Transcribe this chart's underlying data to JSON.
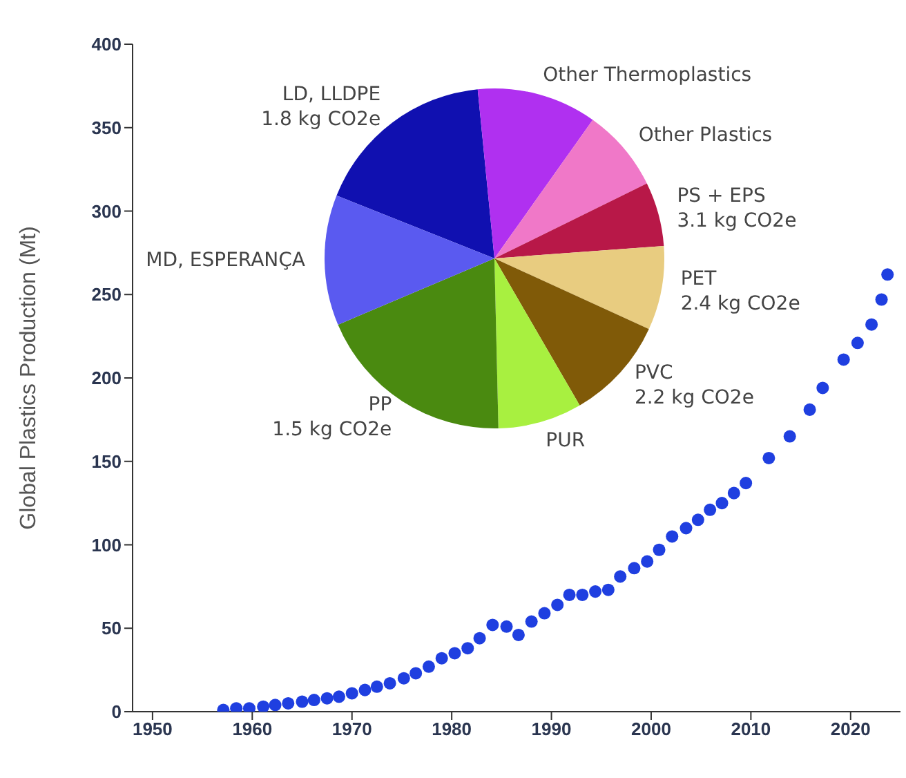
{
  "chart_data": [
    {
      "type": "scatter",
      "ylabel": "Global Plastics Production (Mt)",
      "xlim": [
        1948,
        2025
      ],
      "xticks": [
        1950,
        1960,
        1970,
        1980,
        1990,
        2000,
        2010,
        2020
      ],
      "ylim": [
        0,
        400
      ],
      "yticks": [
        0,
        50,
        100,
        150,
        200,
        250,
        300,
        350,
        400
      ],
      "marker": "circle",
      "series": [
        {
          "color": "#1f3fe0",
          "x": [
            1957.1,
            1958.4,
            1959.7,
            1961.1,
            1962.3,
            1963.6,
            1965,
            1966.2,
            1967.5,
            1968.7,
            1970,
            1971.3,
            1972.5,
            1973.8,
            1975.2,
            1976.4,
            1977.7,
            1979,
            1980.3,
            1981.6,
            1982.8,
            1984.1,
            1985.5,
            1986.7,
            1988,
            1989.3,
            1990.6,
            1991.8,
            1993.1,
            1994.4,
            1995.7,
            1996.9,
            1998.3,
            1999.6,
            2000.8,
            2002.1,
            2003.5,
            2004.7,
            2005.9,
            2007.1,
            2008.3,
            2009.5,
            2011.8,
            2013.9,
            2015.9,
            2017.2,
            2019.3,
            2020.7,
            2022.1,
            2023.1,
            2023.7
          ],
          "values": [
            1,
            2,
            2,
            3,
            4,
            5,
            6,
            7,
            8,
            9,
            11,
            13,
            15,
            17,
            20,
            23,
            27,
            32,
            35,
            38,
            44,
            52,
            51,
            46,
            54,
            59,
            64,
            70,
            70,
            72,
            73,
            81,
            86,
            90,
            97,
            105,
            110,
            115,
            121,
            125,
            131,
            137,
            152,
            165,
            181,
            194,
            211,
            221,
            232,
            247,
            262
          ]
        }
      ]
    },
    {
      "type": "pie",
      "categories": [
        "LD, LLDPE\n1.8 kg CO2e",
        "Other Thermoplastics",
        "Other Plastics",
        "PS + EPS\n3.1 kg CO2e",
        "PET\n2.4 kg CO2e",
        "PVC\n2.2 kg CO2e",
        "PUR",
        "PP\n1.5 kg CO2e",
        "MD, ESPERANÇA"
      ],
      "values": [
        17.4,
        11.4,
        7.9,
        6.1,
        8.0,
        9.8,
        8.0,
        19.0,
        12.4
      ],
      "colors": [
        "#1010b0",
        "#b030f0",
        "#f078c8",
        "#b81848",
        "#e8cc80",
        "#805a08",
        "#a8f040",
        "#4a8a10",
        "#5a5af0"
      ]
    }
  ]
}
